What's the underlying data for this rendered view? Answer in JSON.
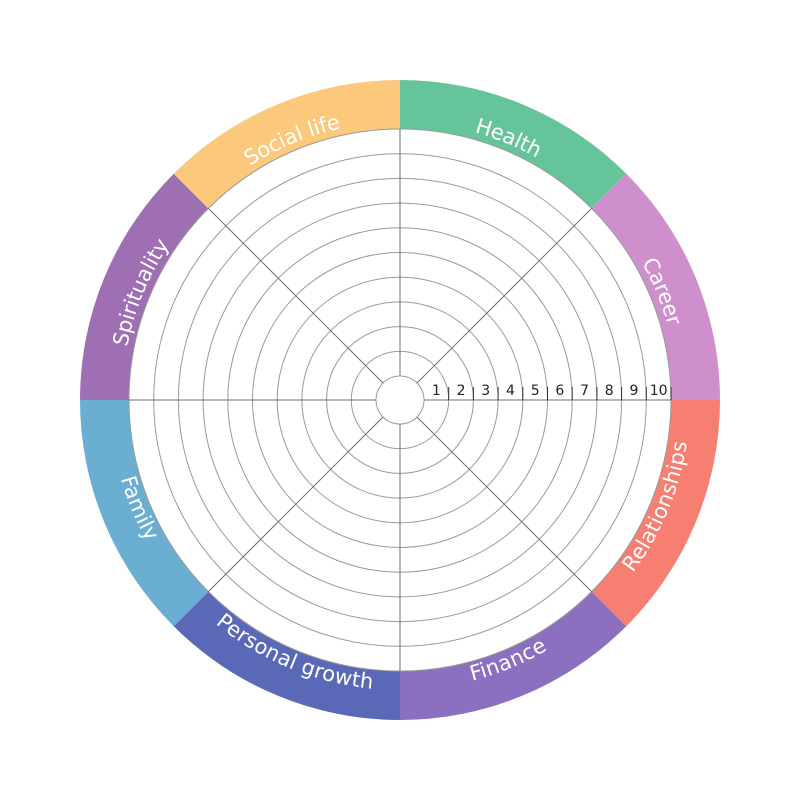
{
  "wheel": {
    "segments": [
      {
        "label": "Health",
        "color": "#66c49a"
      },
      {
        "label": "Career",
        "color": "#cf8fcd"
      },
      {
        "label": "Relationships",
        "color": "#f67f72"
      },
      {
        "label": "Finance",
        "color": "#8c70bf"
      },
      {
        "label": "Personal growth",
        "color": "#5a68b8"
      },
      {
        "label": "Family",
        "color": "#6aaed2"
      },
      {
        "label": "Spirituality",
        "color": "#9e6fb3"
      },
      {
        "label": "Social life",
        "color": "#fbc87c"
      }
    ],
    "scale": [
      "1",
      "2",
      "3",
      "4",
      "5",
      "6",
      "7",
      "8",
      "9",
      "10"
    ]
  }
}
